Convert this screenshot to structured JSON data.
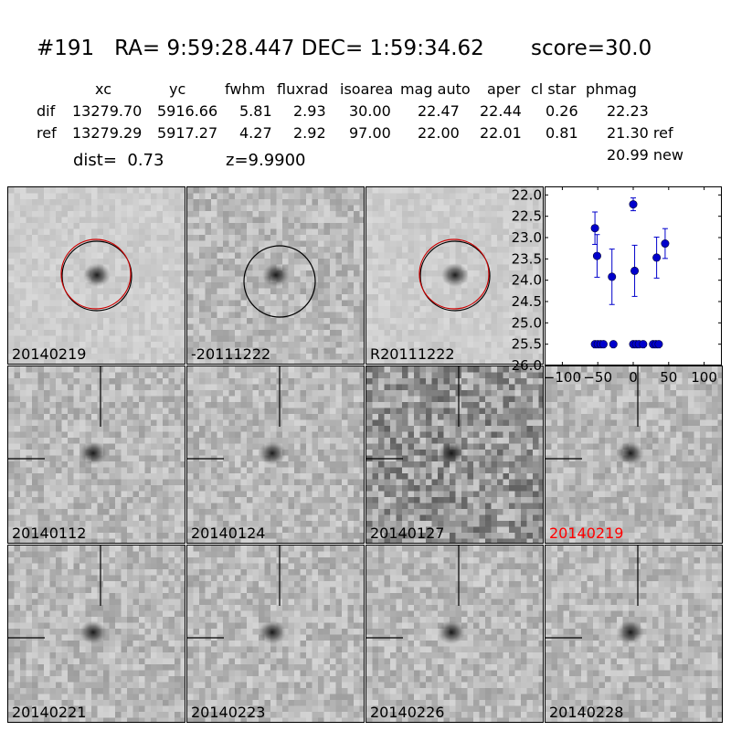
{
  "header": {
    "title": "#191   RA= 9:59:28.447 DEC= 1:59:34.62       score=30.0",
    "columns": [
      "xc",
      "yc",
      "fwhm",
      "fluxrad",
      "isoarea",
      "mag auto",
      "aper",
      "cl star",
      "phmag"
    ],
    "rows": [
      {
        "label": "dif",
        "values": [
          "13279.70",
          "5916.66",
          "5.81",
          "2.93",
          "30.00",
          "22.47",
          "22.44",
          "0.26",
          "22.23"
        ]
      },
      {
        "label": "ref",
        "values": [
          "13279.29",
          "5917.27",
          "4.27",
          "2.92",
          "97.00",
          "22.00",
          "22.01",
          "0.81",
          "21.30 ref"
        ]
      }
    ],
    "phmag_new": "20.99 new",
    "dist": "dist=  0.73",
    "z": "z=9.9900"
  },
  "panels": [
    {
      "label": "20140219",
      "circle": "red-black",
      "crosshair": false,
      "noise": "low"
    },
    {
      "label": "-20111222",
      "circle": "black",
      "crosshair": false,
      "noise": "mid"
    },
    {
      "label": "R20111222",
      "circle": "red-black",
      "crosshair": false,
      "noise": "low"
    },
    {
      "label": "20140112",
      "circle": "none",
      "crosshair": true,
      "noise": "mid"
    },
    {
      "label": "20140124",
      "circle": "none",
      "crosshair": true,
      "noise": "mid"
    },
    {
      "label": "20140127",
      "circle": "none",
      "crosshair": true,
      "noise": "high"
    },
    {
      "label": "20140219",
      "circle": "none",
      "crosshair": true,
      "noise": "mid",
      "highlight": true
    },
    {
      "label": "20140221",
      "circle": "none",
      "crosshair": true,
      "noise": "mid"
    },
    {
      "label": "20140223",
      "circle": "none",
      "crosshair": true,
      "noise": "mid"
    },
    {
      "label": "20140226",
      "circle": "none",
      "crosshair": true,
      "noise": "mid"
    },
    {
      "label": "20140228",
      "circle": "none",
      "crosshair": true,
      "noise": "mid"
    }
  ],
  "colors": {
    "highlight_label": "#ff0000",
    "points": "#0000cc",
    "circle_red": "#cc0000"
  },
  "chart_data": {
    "type": "scatter",
    "xlim": [
      -125,
      125
    ],
    "ylim": [
      26.0,
      21.8
    ],
    "y_inverted": true,
    "xticks": [
      -100,
      -50,
      0,
      50,
      100
    ],
    "xtick_labels": [
      "−100",
      "−50",
      "0",
      "50",
      "100"
    ],
    "yticks": [
      22.0,
      22.5,
      23.0,
      23.5,
      24.0,
      24.5,
      25.0,
      25.5,
      26.0
    ],
    "ytick_labels": [
      "22.0",
      "22.5",
      "23.0",
      "23.5",
      "24.0",
      "24.5",
      "25.0",
      "25.5",
      "26.0"
    ],
    "detections": [
      {
        "x": -54,
        "y": 22.78,
        "err": 0.38
      },
      {
        "x": -51,
        "y": 23.43,
        "err": 0.5
      },
      {
        "x": -30,
        "y": 23.92,
        "err": 0.65
      },
      {
        "x": 0,
        "y": 22.22,
        "err": 0.15
      },
      {
        "x": 2,
        "y": 23.78,
        "err": 0.6
      },
      {
        "x": 33,
        "y": 23.47,
        "err": 0.48
      },
      {
        "x": 45,
        "y": 23.14,
        "err": 0.35
      }
    ],
    "limits": [
      {
        "x": -54,
        "y": 25.5
      },
      {
        "x": -50,
        "y": 25.5
      },
      {
        "x": -46,
        "y": 25.5
      },
      {
        "x": -42,
        "y": 25.5
      },
      {
        "x": -28,
        "y": 25.5
      },
      {
        "x": 0,
        "y": 25.5
      },
      {
        "x": 4,
        "y": 25.5
      },
      {
        "x": 8,
        "y": 25.5
      },
      {
        "x": 14,
        "y": 25.5
      },
      {
        "x": 28,
        "y": 25.5
      },
      {
        "x": 32,
        "y": 25.5
      },
      {
        "x": 36,
        "y": 25.5
      }
    ]
  }
}
